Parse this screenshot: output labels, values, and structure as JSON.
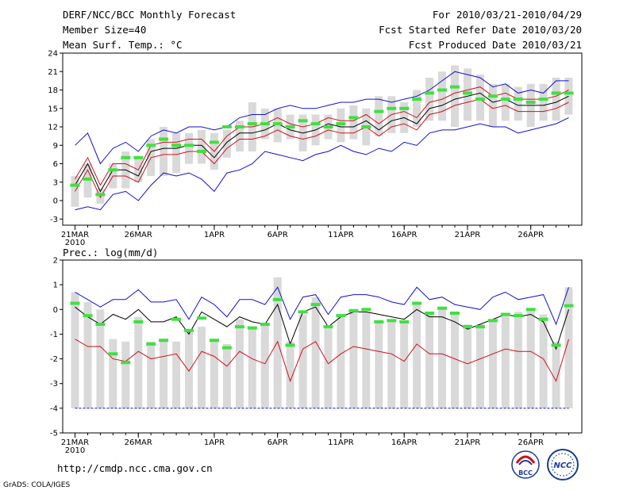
{
  "header": {
    "title": "DERF/NCC/BCC Monthly Forecast",
    "member_size": "Member Size=40",
    "variable": "Mean Surf. Temp.: °C",
    "period": "For 2010/03/21-2010/04/29",
    "start_date": "Fcst Started Refer Date 2010/03/20",
    "produced_date": "Fcst Produced Date 2010/03/21"
  },
  "footer": {
    "url": "http://cmdp.ncc.cma.gov.cn",
    "credit": "GrADS: COLA/IGES",
    "logo_bcc": "BCC",
    "logo_ncc": "NCC"
  },
  "colors": {
    "envelope": "#1010d0",
    "std_band": "#d01020",
    "mean": "#000000",
    "observed": "#40e040",
    "box": "#d9d9d9"
  },
  "chart_data": [
    {
      "id": "temperature",
      "type": "line",
      "title": "Mean Surf. Temp.: °C",
      "x_tick_labels": [
        "21MAR",
        "26MAR",
        "1APR",
        "6APR",
        "11APR",
        "16APR",
        "21APR",
        "26APR"
      ],
      "x_tick_days": [
        1,
        6,
        12,
        17,
        22,
        27,
        32,
        37
      ],
      "year_label": "2010",
      "ylim": [
        -4,
        24
      ],
      "yticks": [
        -3,
        0,
        3,
        6,
        9,
        12,
        15,
        18,
        21,
        24
      ],
      "days": [
        1,
        2,
        3,
        4,
        5,
        6,
        7,
        8,
        9,
        10,
        11,
        12,
        13,
        14,
        15,
        16,
        17,
        18,
        19,
        20,
        21,
        22,
        23,
        24,
        25,
        26,
        27,
        28,
        29,
        30,
        31,
        32,
        33,
        34,
        35,
        36,
        37,
        38,
        39,
        40
      ],
      "series": [
        {
          "name": "box_top",
          "values": [
            4,
            6,
            2,
            6,
            8,
            7,
            10,
            12,
            11,
            11,
            11.5,
            11,
            11.5,
            13,
            16,
            15,
            15,
            14,
            14,
            14,
            14,
            15,
            15.5,
            15,
            17,
            17,
            16,
            18,
            20,
            21,
            22,
            21.5,
            20.5,
            19,
            19,
            18.5,
            19,
            19,
            20,
            20
          ]
        },
        {
          "name": "box_bottom",
          "values": [
            -1,
            0.5,
            -0.5,
            2,
            2,
            3,
            4,
            4,
            4.5,
            6,
            6,
            5,
            7,
            8,
            8,
            10,
            9.5,
            10,
            8,
            9,
            10,
            9.5,
            10,
            9,
            10.5,
            11,
            11,
            12,
            13,
            13,
            12,
            13,
            13,
            12,
            13,
            13,
            12,
            13,
            13,
            14
          ]
        },
        {
          "name": "ensemble_max",
          "values": [
            9,
            11,
            6,
            8.5,
            9.5,
            8,
            10.5,
            11.5,
            11,
            12,
            12,
            11.5,
            12,
            13.5,
            14,
            14,
            15,
            15.5,
            15,
            15,
            15.5,
            16,
            16,
            16.5,
            16.5,
            16,
            16.5,
            17,
            18,
            19.5,
            21,
            20.5,
            20,
            18.5,
            19,
            17.5,
            18,
            17.5,
            19.5,
            19.5
          ]
        },
        {
          "name": "ensemble_min",
          "values": [
            -1.5,
            -1,
            -1.5,
            1,
            1.5,
            0,
            2.5,
            4.5,
            4,
            4.5,
            3.5,
            1.5,
            4.5,
            5,
            6,
            8,
            7.5,
            7,
            6.5,
            7.5,
            8,
            9,
            8,
            7.5,
            8.5,
            8,
            9.5,
            9,
            11,
            11.5,
            11.5,
            12,
            12.5,
            12,
            12,
            11,
            11.5,
            12,
            12.5,
            13.5
          ]
        },
        {
          "name": "mean_plus_std",
          "values": [
            3.5,
            7,
            2.5,
            6,
            6,
            5,
            9,
            9.5,
            9.5,
            10,
            10,
            8,
            10.5,
            12,
            12,
            12.5,
            13.5,
            12.5,
            12,
            12.5,
            13.5,
            13,
            13,
            14,
            12.5,
            14,
            14.5,
            13.5,
            16,
            16.5,
            17.5,
            18,
            18.5,
            17,
            17.5,
            16.5,
            16.5,
            16.5,
            17,
            18
          ]
        },
        {
          "name": "mean",
          "values": [
            2.5,
            6,
            1.5,
            5,
            5,
            4,
            8,
            8.5,
            8.5,
            9,
            9,
            7,
            9.5,
            11,
            11,
            11.5,
            12.5,
            11.5,
            11,
            11.5,
            12.5,
            12,
            12,
            13,
            11.5,
            13,
            13.5,
            12.5,
            15,
            15.5,
            16.5,
            17,
            17.5,
            16,
            16.5,
            15.5,
            15.5,
            15.5,
            16,
            17
          ]
        },
        {
          "name": "mean_minus_std",
          "values": [
            1.5,
            5,
            0.5,
            4,
            4,
            3,
            7,
            7.5,
            7.5,
            8,
            8,
            6,
            8.5,
            10,
            10,
            10.5,
            11.5,
            10.5,
            10,
            10.5,
            11.5,
            11,
            11,
            12,
            10.5,
            12,
            12.5,
            11.5,
            14,
            14.5,
            15.5,
            16,
            16.5,
            15,
            15.5,
            14.5,
            14.5,
            14.5,
            15,
            16
          ]
        },
        {
          "name": "observed",
          "values": [
            2.5,
            3.5,
            1,
            5,
            7,
            7,
            9,
            10,
            9,
            9,
            8,
            9.5,
            12,
            12,
            12.5,
            12.5,
            12.5,
            12,
            13,
            12.5,
            12,
            12.5,
            13.5,
            12,
            14.5,
            15,
            15,
            16.5,
            17.5,
            18,
            18.5,
            17.5,
            16.5,
            17,
            16.5,
            16.5,
            16,
            16.5,
            17.5,
            17.5
          ]
        }
      ]
    },
    {
      "id": "precipitation",
      "type": "line",
      "title": "Prec.: log(mm/d)",
      "x_tick_labels": [
        "21MAR",
        "26MAR",
        "1APR",
        "6APR",
        "11APR",
        "16APR",
        "21APR",
        "26APR"
      ],
      "x_tick_days": [
        1,
        6,
        12,
        17,
        22,
        27,
        32,
        37
      ],
      "year_label": "2010",
      "ylim": [
        -5,
        2
      ],
      "yticks": [
        -5,
        -4,
        -3,
        -2,
        -1,
        0,
        1,
        2
      ],
      "floor_value": -4,
      "days": [
        1,
        2,
        3,
        4,
        5,
        6,
        7,
        8,
        9,
        10,
        11,
        12,
        13,
        14,
        15,
        16,
        17,
        18,
        19,
        20,
        21,
        22,
        23,
        24,
        25,
        26,
        27,
        28,
        29,
        30,
        31,
        32,
        33,
        34,
        35,
        36,
        37,
        38,
        39,
        40
      ],
      "series": [
        {
          "name": "box_top",
          "values": [
            0.7,
            0.3,
            0,
            -1.2,
            -1.3,
            -0.3,
            -1.3,
            -1.2,
            -1.3,
            -0.8,
            -0.7,
            -1.2,
            -1.4,
            -0.4,
            -0.8,
            -0.6,
            1.3,
            -1.3,
            -0.2,
            0.5,
            -0.7,
            -0.3,
            -0.1,
            -0.1,
            -0.5,
            -0.5,
            -0.5,
            0.3,
            -0.1,
            0,
            -0.1,
            -0.6,
            -0.6,
            -0.4,
            -0.2,
            -0.1,
            0,
            -0.2,
            -1.3,
            0.9
          ]
        },
        {
          "name": "box_bottom",
          "values": [
            -4,
            -4,
            -4,
            -4,
            -4,
            -4,
            -4,
            -4,
            -4,
            -4,
            -4,
            -4,
            -4,
            -4,
            -4,
            -4,
            -4,
            -4,
            -4,
            -4,
            -4,
            -4,
            -4,
            -4,
            -4,
            -4,
            -4,
            -4,
            -4,
            -4,
            -4,
            -4,
            -4,
            -4,
            -4,
            -4,
            -4,
            -4,
            -4,
            -4
          ]
        },
        {
          "name": "ensemble_max",
          "values": [
            0.7,
            0.4,
            0.1,
            0.4,
            0.4,
            0.8,
            0.3,
            0.3,
            0.4,
            -0.4,
            0.5,
            0.2,
            -0.3,
            0.4,
            0.4,
            0.2,
            0.9,
            -0.4,
            0.5,
            0.6,
            -0.2,
            0.5,
            0.6,
            0.6,
            0.5,
            0.3,
            0.2,
            0.9,
            0.4,
            0.5,
            0.2,
            0.1,
            0.0,
            0.5,
            0.7,
            0.4,
            0.5,
            0.6,
            -0.6,
            0.9
          ]
        },
        {
          "name": "mean",
          "values": [
            0.1,
            -0.3,
            -0.6,
            -0.2,
            -0.4,
            0,
            -0.5,
            -0.5,
            -0.3,
            -1.0,
            -0.1,
            -0.4,
            -0.7,
            -0.3,
            -0.5,
            -0.6,
            0.2,
            -1.4,
            -0.1,
            0.1,
            -0.7,
            -0.3,
            -0.1,
            -0.1,
            -0.2,
            -0.3,
            -0.4,
            0,
            -0.3,
            -0.3,
            -0.5,
            -0.8,
            -0.6,
            -0.4,
            -0.2,
            -0.3,
            -0.2,
            -0.5,
            -1.6,
            0
          ]
        },
        {
          "name": "mean_minus_std",
          "values": [
            -1.2,
            -1.5,
            -1.5,
            -2.0,
            -2.1,
            -1.7,
            -2.0,
            -1.9,
            -1.8,
            -2.5,
            -1.7,
            -1.9,
            -2.3,
            -1.7,
            -2.0,
            -2.2,
            -1.3,
            -2.9,
            -1.6,
            -1.3,
            -2.2,
            -1.8,
            -1.5,
            -1.6,
            -1.7,
            -1.8,
            -2.1,
            -1.4,
            -1.8,
            -1.8,
            -2.0,
            -2.2,
            -2.0,
            -1.8,
            -1.6,
            -1.7,
            -1.7,
            -2.0,
            -2.9,
            -1.2
          ]
        },
        {
          "name": "observed",
          "values": [
            0.25,
            -0.25,
            -0.6,
            -1.8,
            -2.15,
            -0.5,
            -1.4,
            -1.25,
            -0.4,
            -0.85,
            -0.35,
            -1.25,
            -1.55,
            -0.7,
            -0.75,
            -0.6,
            0.4,
            -1.45,
            -0.1,
            0.2,
            -0.7,
            -0.25,
            -0.05,
            0,
            -0.5,
            -0.45,
            -0.5,
            0.25,
            -0.15,
            0.05,
            -0.15,
            -0.7,
            -0.7,
            -0.45,
            -0.2,
            -0.25,
            0,
            -0.4,
            -1.45,
            0.15
          ]
        }
      ]
    }
  ]
}
